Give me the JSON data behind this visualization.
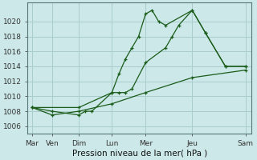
{
  "title": "",
  "xlabel": "Pression niveau de la mer( hPa )",
  "ylabel": "",
  "background_color": "#cce8e8",
  "grid_color": "#aacccc",
  "line_color": "#1a5c1a",
  "xtick_labels": [
    "Mar",
    "Ven",
    "Dim",
    "Lun",
    "Mer",
    "Jeu",
    "Sam"
  ],
  "xtick_positions": [
    0,
    0.43,
    1.0,
    1.71,
    2.43,
    3.43,
    4.57
  ],
  "xlim": [
    -0.1,
    4.7
  ],
  "ylim": [
    1005.0,
    1022.5
  ],
  "yticks": [
    1006,
    1008,
    1010,
    1012,
    1014,
    1016,
    1018,
    1020
  ],
  "line1_x": [
    0,
    0.43,
    1.0,
    1.14,
    1.28,
    1.71,
    1.86,
    2.0,
    2.14,
    2.28,
    2.43,
    2.57,
    2.71,
    2.86,
    3.43,
    3.71,
    4.14,
    4.57
  ],
  "line1_y": [
    1008.5,
    1008.0,
    1007.5,
    1008.0,
    1008.0,
    1010.5,
    1013.0,
    1015.0,
    1016.5,
    1018.0,
    1021.0,
    1021.5,
    1020.0,
    1019.5,
    1021.5,
    1018.5,
    1014.0,
    1014.0
  ],
  "line2_x": [
    0,
    1.0,
    1.71,
    1.86,
    2.0,
    2.14,
    2.43,
    2.86,
    3.0,
    3.14,
    3.43,
    3.71,
    4.14,
    4.57
  ],
  "line2_y": [
    1008.5,
    1008.5,
    1010.5,
    1010.5,
    1010.5,
    1011.0,
    1014.5,
    1016.5,
    1018.0,
    1019.5,
    1021.5,
    1018.5,
    1014.0,
    1014.0
  ],
  "line3_x": [
    0,
    0.43,
    1.0,
    1.71,
    2.43,
    3.43,
    4.57
  ],
  "line3_y": [
    1008.5,
    1007.5,
    1008.0,
    1009.0,
    1010.5,
    1012.5,
    1013.5
  ],
  "marker": "+"
}
